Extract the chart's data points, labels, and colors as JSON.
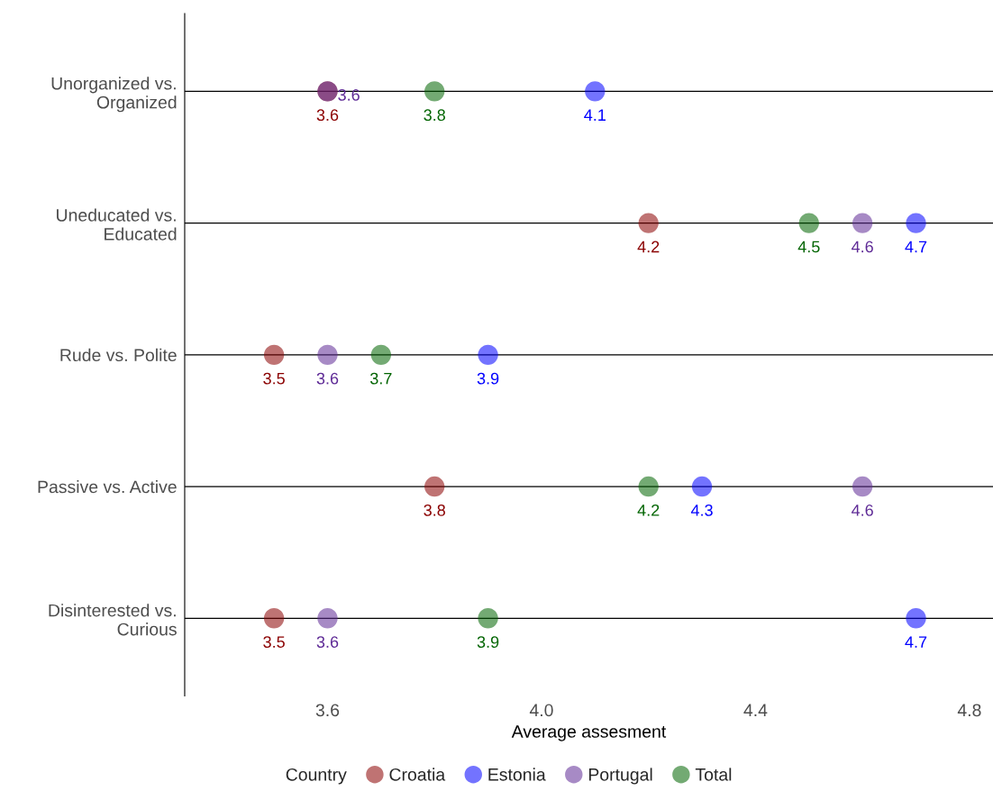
{
  "chart_data": {
    "type": "scatter",
    "orientation": "horizontal",
    "xlabel": "Average assesment",
    "legend_title": "Country",
    "categories": [
      "Unorganized vs.\nOrganized",
      "Uneducated vs.\nEducated",
      "Rude vs. Polite",
      "Passive vs. Active",
      "Disinterested vs.\nCurious"
    ],
    "series": [
      {
        "name": "Croatia",
        "color": "#8b0000",
        "values": [
          3.6,
          4.2,
          3.5,
          3.8,
          3.5
        ]
      },
      {
        "name": "Estonia",
        "color": "#0000ff",
        "values": [
          4.1,
          4.7,
          3.9,
          4.3,
          4.7
        ]
      },
      {
        "name": "Portugal",
        "color": "#5e2a96",
        "values": [
          3.6,
          4.6,
          3.6,
          4.6,
          3.6
        ]
      },
      {
        "name": "Total",
        "color": "#006400",
        "values": [
          3.8,
          4.5,
          3.7,
          4.2,
          3.9
        ]
      }
    ],
    "xlim": [
      3.333,
      4.844
    ],
    "xticks": [
      3.6,
      {
        "value": 4.0,
        "label": "4.0"
      },
      4.4,
      4.8
    ],
    "data_labels": true,
    "grid": "y",
    "legend": "bottom",
    "marker": "circle"
  }
}
